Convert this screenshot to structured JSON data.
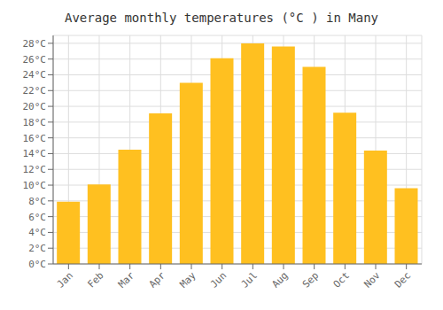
{
  "chart_data": {
    "type": "bar",
    "title": "Average monthly temperatures (°C ) in Many",
    "categories": [
      "Jan",
      "Feb",
      "Mar",
      "Apr",
      "May",
      "Jun",
      "Jul",
      "Aug",
      "Sep",
      "Oct",
      "Nov",
      "Dec"
    ],
    "values": [
      7.9,
      10.1,
      14.5,
      19.1,
      23.0,
      26.1,
      28.0,
      27.6,
      25.0,
      19.2,
      14.4,
      9.6
    ],
    "color": "#FFC020",
    "ylim": [
      0,
      29
    ],
    "yticks": [
      {
        "value": 0,
        "label": "0°C"
      },
      {
        "value": 2,
        "label": "2°C"
      },
      {
        "value": 4,
        "label": "4°C"
      },
      {
        "value": 6,
        "label": "6°C"
      },
      {
        "value": 8,
        "label": "8°C"
      },
      {
        "value": 10,
        "label": "10°C"
      },
      {
        "value": 12,
        "label": "12°C"
      },
      {
        "value": 14,
        "label": "14°C"
      },
      {
        "value": 16,
        "label": "16°C"
      },
      {
        "value": 18,
        "label": "18°C"
      },
      {
        "value": 20,
        "label": "20°C"
      },
      {
        "value": 22,
        "label": "22°C"
      },
      {
        "value": 24,
        "label": "24°C"
      },
      {
        "value": 26,
        "label": "26°C"
      },
      {
        "value": 28,
        "label": "28°C"
      }
    ],
    "grid": true
  }
}
